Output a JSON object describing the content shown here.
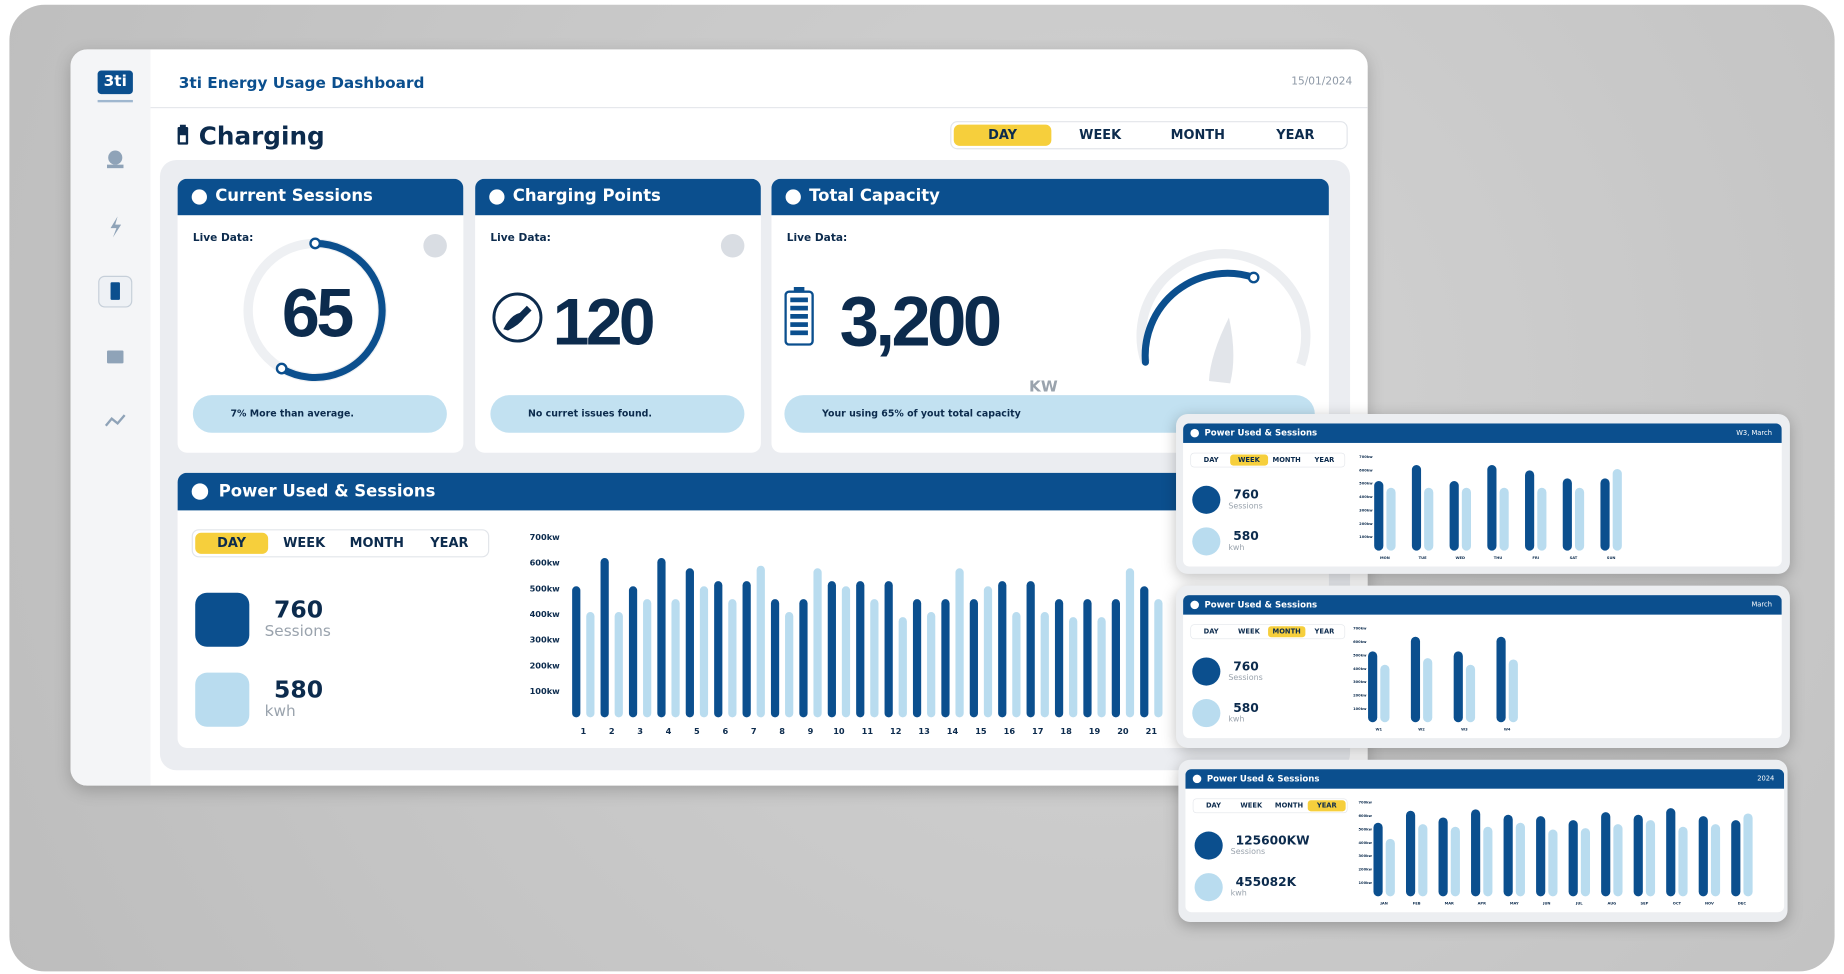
{
  "header": {
    "logo": "3ti",
    "title": "3ti Energy Usage Dashboard",
    "date": "15/01/2024"
  },
  "page": {
    "title": "Charging",
    "tabs": [
      "DAY",
      "WEEK",
      "MONTH",
      "YEAR"
    ],
    "active_tab": 0
  },
  "cards": [
    {
      "title": "Current Sessions",
      "live_label": "Live Data:",
      "value": "65",
      "note": "7% More than average."
    },
    {
      "title": "Charging Points",
      "live_label": "Live Data:",
      "value": "120",
      "note": "No curret issues found."
    },
    {
      "title": "Total Capacity",
      "live_label": "Live Data:",
      "value": "3,200",
      "unit": "KW",
      "note": "Your using 65% of yout total capacity"
    }
  ],
  "panels": [
    {
      "title": "Power Used & Sessions",
      "tabs": [
        "DAY",
        "WEEK",
        "MONTH",
        "YEAR"
      ],
      "active_tab": 0,
      "stats": [
        {
          "value": "760",
          "label": "Sessions"
        },
        {
          "value": "580",
          "label": "kwh"
        }
      ],
      "chart": {
        "type": "bar",
        "categories": [
          "1",
          "2",
          "3",
          "4",
          "5",
          "6",
          "7",
          "8",
          "9",
          "10",
          "11",
          "12",
          "13",
          "14",
          "15",
          "16",
          "17",
          "18",
          "19",
          "20",
          "21"
        ],
        "series": [
          {
            "color": "#0b4f8e",
            "values": [
              510,
              620,
              510,
              620,
              580,
              530,
              530,
              460,
              460,
              530,
              530,
              530,
              460,
              460,
              460,
              530,
              530,
              460,
              460,
              460,
              510
            ]
          },
          {
            "color": "#b9dcef",
            "values": [
              410,
              410,
              460,
              460,
              510,
              460,
              590,
              410,
              580,
              510,
              460,
              390,
              410,
              580,
              510,
              410,
              410,
              390,
              390,
              580,
              460
            ]
          }
        ],
        "ylim": [
          0,
          700
        ],
        "yticks": [
          {
            "value": 100,
            "label": "100kw"
          },
          {
            "value": 200,
            "label": "200kw"
          },
          {
            "value": 300,
            "label": "300kw"
          },
          {
            "value": 400,
            "label": "400kw"
          },
          {
            "value": 500,
            "label": "500kw"
          },
          {
            "value": 600,
            "label": "600kw"
          },
          {
            "value": 700,
            "label": "700kw"
          }
        ]
      }
    },
    {
      "title": "Power Used & Sessions",
      "period": "W3, March",
      "tabs": [
        "DAY",
        "WEEK",
        "MONTH",
        "YEAR"
      ],
      "active_tab": 1,
      "stats": [
        {
          "value": "760",
          "label": "Sessions"
        },
        {
          "value": "580",
          "label": "kwh"
        }
      ],
      "chart": {
        "type": "bar",
        "categories": [
          "MON",
          "TUE",
          "WED",
          "THU",
          "FRI",
          "SAT",
          "SUN"
        ],
        "series": [
          {
            "color": "#0b4f8e",
            "values": [
              520,
              640,
              520,
              640,
              600,
              540,
              540
            ]
          },
          {
            "color": "#b9dcef",
            "values": [
              470,
              470,
              470,
              470,
              470,
              470,
              610
            ]
          }
        ],
        "ylim": [
          0,
          700
        ],
        "yticks": [
          {
            "value": 100,
            "label": "100kw"
          },
          {
            "value": 200,
            "label": "200kw"
          },
          {
            "value": 300,
            "label": "300kw"
          },
          {
            "value": 400,
            "label": "400kw"
          },
          {
            "value": 500,
            "label": "500kw"
          },
          {
            "value": 600,
            "label": "600kw"
          },
          {
            "value": 700,
            "label": "700kw"
          }
        ]
      }
    },
    {
      "title": "Power Used & Sessions",
      "period": "March",
      "tabs": [
        "DAY",
        "WEEK",
        "MONTH",
        "YEAR"
      ],
      "active_tab": 2,
      "stats": [
        {
          "value": "760",
          "label": "Sessions"
        },
        {
          "value": "580",
          "label": "kwh"
        }
      ],
      "chart": {
        "type": "bar",
        "categories": [
          "W1",
          "W2",
          "W3",
          "W4"
        ],
        "series": [
          {
            "color": "#0b4f8e",
            "values": [
              530,
              640,
              530,
              640
            ]
          },
          {
            "color": "#b9dcef",
            "values": [
              430,
              480,
              430,
              470
            ]
          }
        ],
        "ylim": [
          0,
          700
        ],
        "yticks": [
          {
            "value": 100,
            "label": "100kw"
          },
          {
            "value": 200,
            "label": "200kw"
          },
          {
            "value": 300,
            "label": "300kw"
          },
          {
            "value": 400,
            "label": "400kw"
          },
          {
            "value": 500,
            "label": "500kw"
          },
          {
            "value": 600,
            "label": "600kw"
          },
          {
            "value": 700,
            "label": "700kw"
          }
        ]
      }
    },
    {
      "title": "Power Used & Sessions",
      "period": "2024",
      "tabs": [
        "DAY",
        "WEEK",
        "MONTH",
        "YEAR"
      ],
      "active_tab": 3,
      "stats": [
        {
          "value": "125600KW",
          "label": "Sessions"
        },
        {
          "value": "455082K",
          "label": "kwh"
        }
      ],
      "chart": {
        "type": "bar",
        "categories": [
          "JAN",
          "FEB",
          "MAR",
          "APR",
          "MAY",
          "JUN",
          "JUL",
          "AUG",
          "SEP",
          "OCT",
          "NOV",
          "DEC"
        ],
        "series": [
          {
            "color": "#0b4f8e",
            "values": [
              550,
              640,
              590,
              650,
              610,
              600,
              570,
              630,
              610,
              660,
              600,
              570
            ]
          },
          {
            "color": "#b9dcef",
            "values": [
              430,
              540,
              520,
              520,
              550,
              500,
              510,
              540,
              570,
              520,
              540,
              620
            ]
          }
        ],
        "ylim": [
          0,
          700
        ],
        "yticks": [
          {
            "value": 100,
            "label": "100kw"
          },
          {
            "value": 200,
            "label": "200kw"
          },
          {
            "value": 300,
            "label": "300kw"
          },
          {
            "value": 400,
            "label": "400kw"
          },
          {
            "value": 500,
            "label": "500kw"
          },
          {
            "value": 600,
            "label": "600kw"
          },
          {
            "value": 700,
            "label": "700kw"
          }
        ]
      }
    }
  ]
}
